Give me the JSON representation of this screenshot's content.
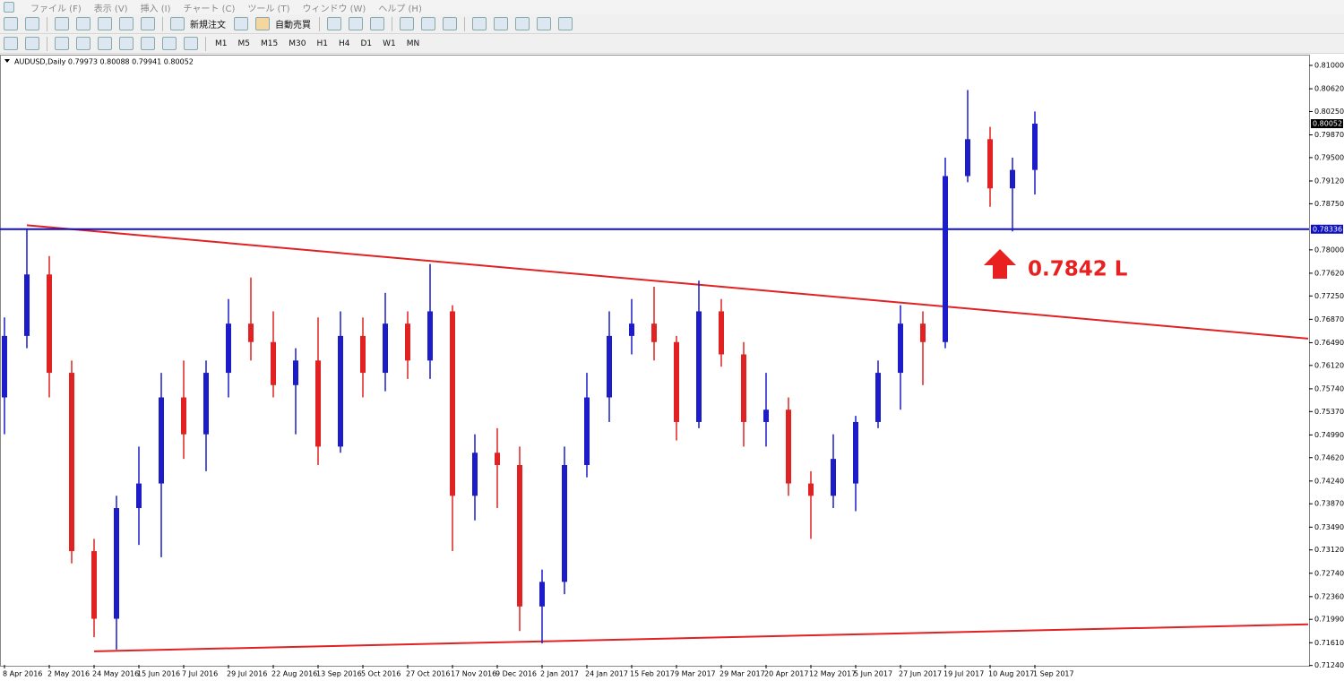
{
  "menu": {
    "items": [
      "ファイル (F)",
      "表示 (V)",
      "挿入 (I)",
      "チャート (C)",
      "ツール (T)",
      "ウィンドウ (W)",
      "ヘルプ (H)"
    ]
  },
  "toolbar": {
    "new_order": "新規注文",
    "auto_trading": "自動売買",
    "timeframes": [
      "M1",
      "M5",
      "M15",
      "M30",
      "H1",
      "H4",
      "D1",
      "W1",
      "MN"
    ]
  },
  "chart_data": {
    "type": "candlestick",
    "header": "AUDUSD,Daily  0.79973 0.80088 0.79941 0.80052",
    "categories": [
      "8 Apr 2016",
      null,
      "2 May 2016",
      null,
      "24 May 2016",
      null,
      "15 Jun 2016",
      null,
      "7 Jul 2016",
      null,
      "29 Jul 2016",
      null,
      "22 Aug 2016",
      null,
      "13 Sep 2016",
      null,
      "5 Oct 2016",
      null,
      "27 Oct 2016",
      null,
      "17 Nov 2016",
      null,
      "9 Dec 2016",
      null,
      "2 Jan 2017",
      null,
      "24 Jan 2017",
      null,
      "15 Feb 2017",
      null,
      "9 Mar 2017",
      null,
      "29 Mar 2017",
      null,
      "20 Apr 2017",
      null,
      "12 May 2017",
      null,
      "5 Jun 2017",
      null,
      "27 Jun 2017",
      null,
      "19 Jul 2017",
      null,
      "10 Aug 2017",
      null,
      "1 Sep 2017"
    ],
    "open": [
      0.756,
      0.766,
      0.776,
      0.76,
      0.731,
      0.72,
      0.738,
      0.742,
      0.756,
      0.75,
      0.76,
      0.768,
      0.765,
      0.758,
      0.762,
      0.748,
      0.766,
      0.76,
      0.768,
      0.762,
      0.77,
      0.74,
      0.747,
      0.745,
      0.722,
      0.726,
      0.745,
      0.756,
      0.766,
      0.768,
      0.765,
      0.752,
      0.77,
      0.763,
      0.752,
      0.754,
      0.742,
      0.74,
      0.742,
      0.752,
      0.76,
      0.768,
      0.765,
      0.792,
      0.798,
      0.79,
      0.793
    ],
    "high": [
      0.769,
      0.7833,
      0.779,
      0.762,
      0.733,
      0.74,
      0.748,
      0.76,
      0.762,
      0.762,
      0.772,
      0.7755,
      0.77,
      0.764,
      0.769,
      0.77,
      0.769,
      0.773,
      0.77,
      0.7777,
      0.771,
      0.75,
      0.751,
      0.748,
      0.728,
      0.748,
      0.76,
      0.77,
      0.772,
      0.774,
      0.766,
      0.775,
      0.772,
      0.765,
      0.76,
      0.756,
      0.744,
      0.75,
      0.753,
      0.762,
      0.771,
      0.77,
      0.795,
      0.806,
      0.8,
      0.795,
      0.8025
    ],
    "low": [
      0.75,
      0.764,
      0.756,
      0.729,
      0.717,
      0.715,
      0.732,
      0.73,
      0.746,
      0.744,
      0.756,
      0.762,
      0.756,
      0.75,
      0.745,
      0.747,
      0.756,
      0.757,
      0.759,
      0.759,
      0.731,
      0.736,
      0.738,
      0.718,
      0.716,
      0.724,
      0.743,
      0.752,
      0.763,
      0.762,
      0.749,
      0.751,
      0.761,
      0.748,
      0.748,
      0.74,
      0.733,
      0.738,
      0.7375,
      0.751,
      0.754,
      0.758,
      0.764,
      0.791,
      0.787,
      0.783,
      0.789
    ],
    "close": [
      0.766,
      0.776,
      0.76,
      0.731,
      0.72,
      0.738,
      0.742,
      0.756,
      0.75,
      0.76,
      0.768,
      0.765,
      0.758,
      0.762,
      0.748,
      0.766,
      0.76,
      0.768,
      0.762,
      0.77,
      0.74,
      0.747,
      0.745,
      0.722,
      0.726,
      0.745,
      0.756,
      0.766,
      0.768,
      0.765,
      0.752,
      0.77,
      0.763,
      0.752,
      0.754,
      0.742,
      0.74,
      0.746,
      0.752,
      0.76,
      0.768,
      0.765,
      0.792,
      0.798,
      0.79,
      0.793,
      0.80052
    ],
    "up_color": "#1c1cc8",
    "down_color": "#e02222",
    "ylim": [
      0.7125,
      0.8116
    ],
    "yticks": [
      {
        "value": 0.81,
        "label": "0.81000"
      },
      {
        "value": 0.8062,
        "label": "0.80620"
      },
      {
        "value": 0.8025,
        "label": "0.80250"
      },
      {
        "value": 0.7987,
        "label": "0.79870"
      },
      {
        "value": 0.795,
        "label": "0.79500"
      },
      {
        "value": 0.7912,
        "label": "0.79120"
      },
      {
        "value": 0.7875,
        "label": "0.78750"
      },
      {
        "value": 0.78,
        "label": "0.78000"
      },
      {
        "value": 0.7762,
        "label": "0.77620"
      },
      {
        "value": 0.7725,
        "label": "0.77250"
      },
      {
        "value": 0.7687,
        "label": "0.76870"
      },
      {
        "value": 0.7649,
        "label": "0.76490"
      },
      {
        "value": 0.7612,
        "label": "0.76120"
      },
      {
        "value": 0.7574,
        "label": "0.75740"
      },
      {
        "value": 0.7537,
        "label": "0.75370"
      },
      {
        "value": 0.7499,
        "label": "0.74990"
      },
      {
        "value": 0.7462,
        "label": "0.74620"
      },
      {
        "value": 0.7424,
        "label": "0.74240"
      },
      {
        "value": 0.7387,
        "label": "0.73870"
      },
      {
        "value": 0.7349,
        "label": "0.73490"
      },
      {
        "value": 0.7312,
        "label": "0.73120"
      },
      {
        "value": 0.7274,
        "label": "0.72740"
      },
      {
        "value": 0.7236,
        "label": "0.72360"
      },
      {
        "value": 0.7199,
        "label": "0.71990"
      },
      {
        "value": 0.7161,
        "label": "0.71610"
      },
      {
        "value": 0.7124,
        "label": "0.71240"
      }
    ],
    "current_price": {
      "value": 0.80052,
      "label": "0.80052"
    },
    "hline": {
      "value": 0.78336,
      "label": "0.78336",
      "color": "#1010c0"
    },
    "trendlines": [
      {
        "x": [
          1,
          58.2
        ],
        "values": [
          0.784,
          0.76556
        ],
        "color": "#e02222"
      },
      {
        "x": [
          4,
          58.2
        ],
        "values": [
          0.7147,
          0.7191
        ],
        "color": "#e02222"
      }
    ],
    "annotation": "0.7842 L"
  }
}
